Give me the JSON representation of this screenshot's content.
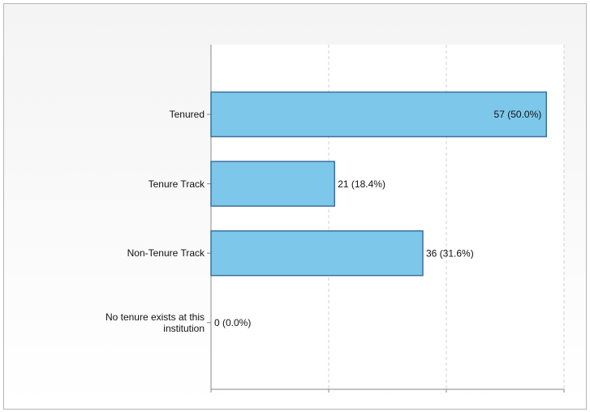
{
  "chart_data": {
    "type": "bar",
    "orientation": "horizontal",
    "categories": [
      "Tenured",
      "Tenure Track",
      "Non-Tenure Track",
      "No tenure exists at this institution"
    ],
    "values": [
      57,
      21,
      36,
      0
    ],
    "value_labels": [
      "57 (50.0%)",
      "21 (18.4%)",
      "36 (31.6%)",
      "0 (0.0%)"
    ],
    "color": "#7dc8ea",
    "xlim": [
      0,
      60
    ],
    "xticks": [
      0,
      20,
      40,
      60
    ],
    "grid": true
  }
}
